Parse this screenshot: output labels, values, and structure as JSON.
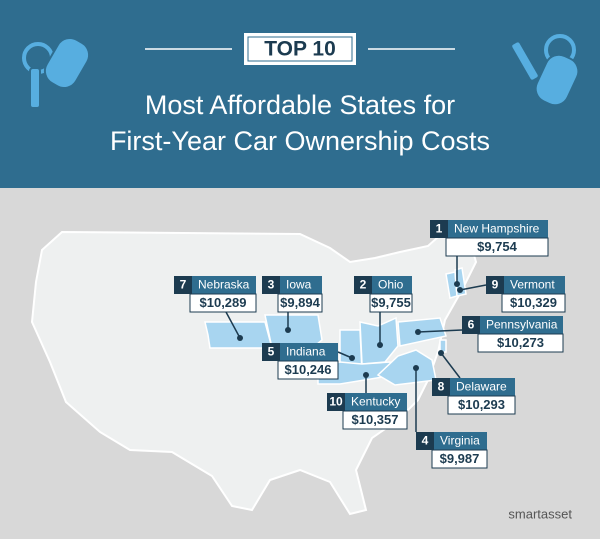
{
  "header": {
    "badge": "TOP 10",
    "title_lines": [
      "Most Affordable States for",
      "First-Year Car Ownership Costs"
    ]
  },
  "states": [
    {
      "rank": 1,
      "name": "New Hampshire",
      "cost": "$9,754"
    },
    {
      "rank": 2,
      "name": "Ohio",
      "cost": "$9,755"
    },
    {
      "rank": 3,
      "name": "Iowa",
      "cost": "$9,894"
    },
    {
      "rank": 4,
      "name": "Virginia",
      "cost": "$9,987"
    },
    {
      "rank": 5,
      "name": "Indiana",
      "cost": "$10,246"
    },
    {
      "rank": 6,
      "name": "Pennsylvania",
      "cost": "$10,273"
    },
    {
      "rank": 7,
      "name": "Nebraska",
      "cost": "$10,289"
    },
    {
      "rank": 8,
      "name": "Delaware",
      "cost": "$10,293"
    },
    {
      "rank": 9,
      "name": "Vermont",
      "cost": "$10,329"
    },
    {
      "rank": 10,
      "name": "Kentucky",
      "cost": "$10,357"
    }
  ],
  "footer": {
    "brand": "smartasset"
  }
}
